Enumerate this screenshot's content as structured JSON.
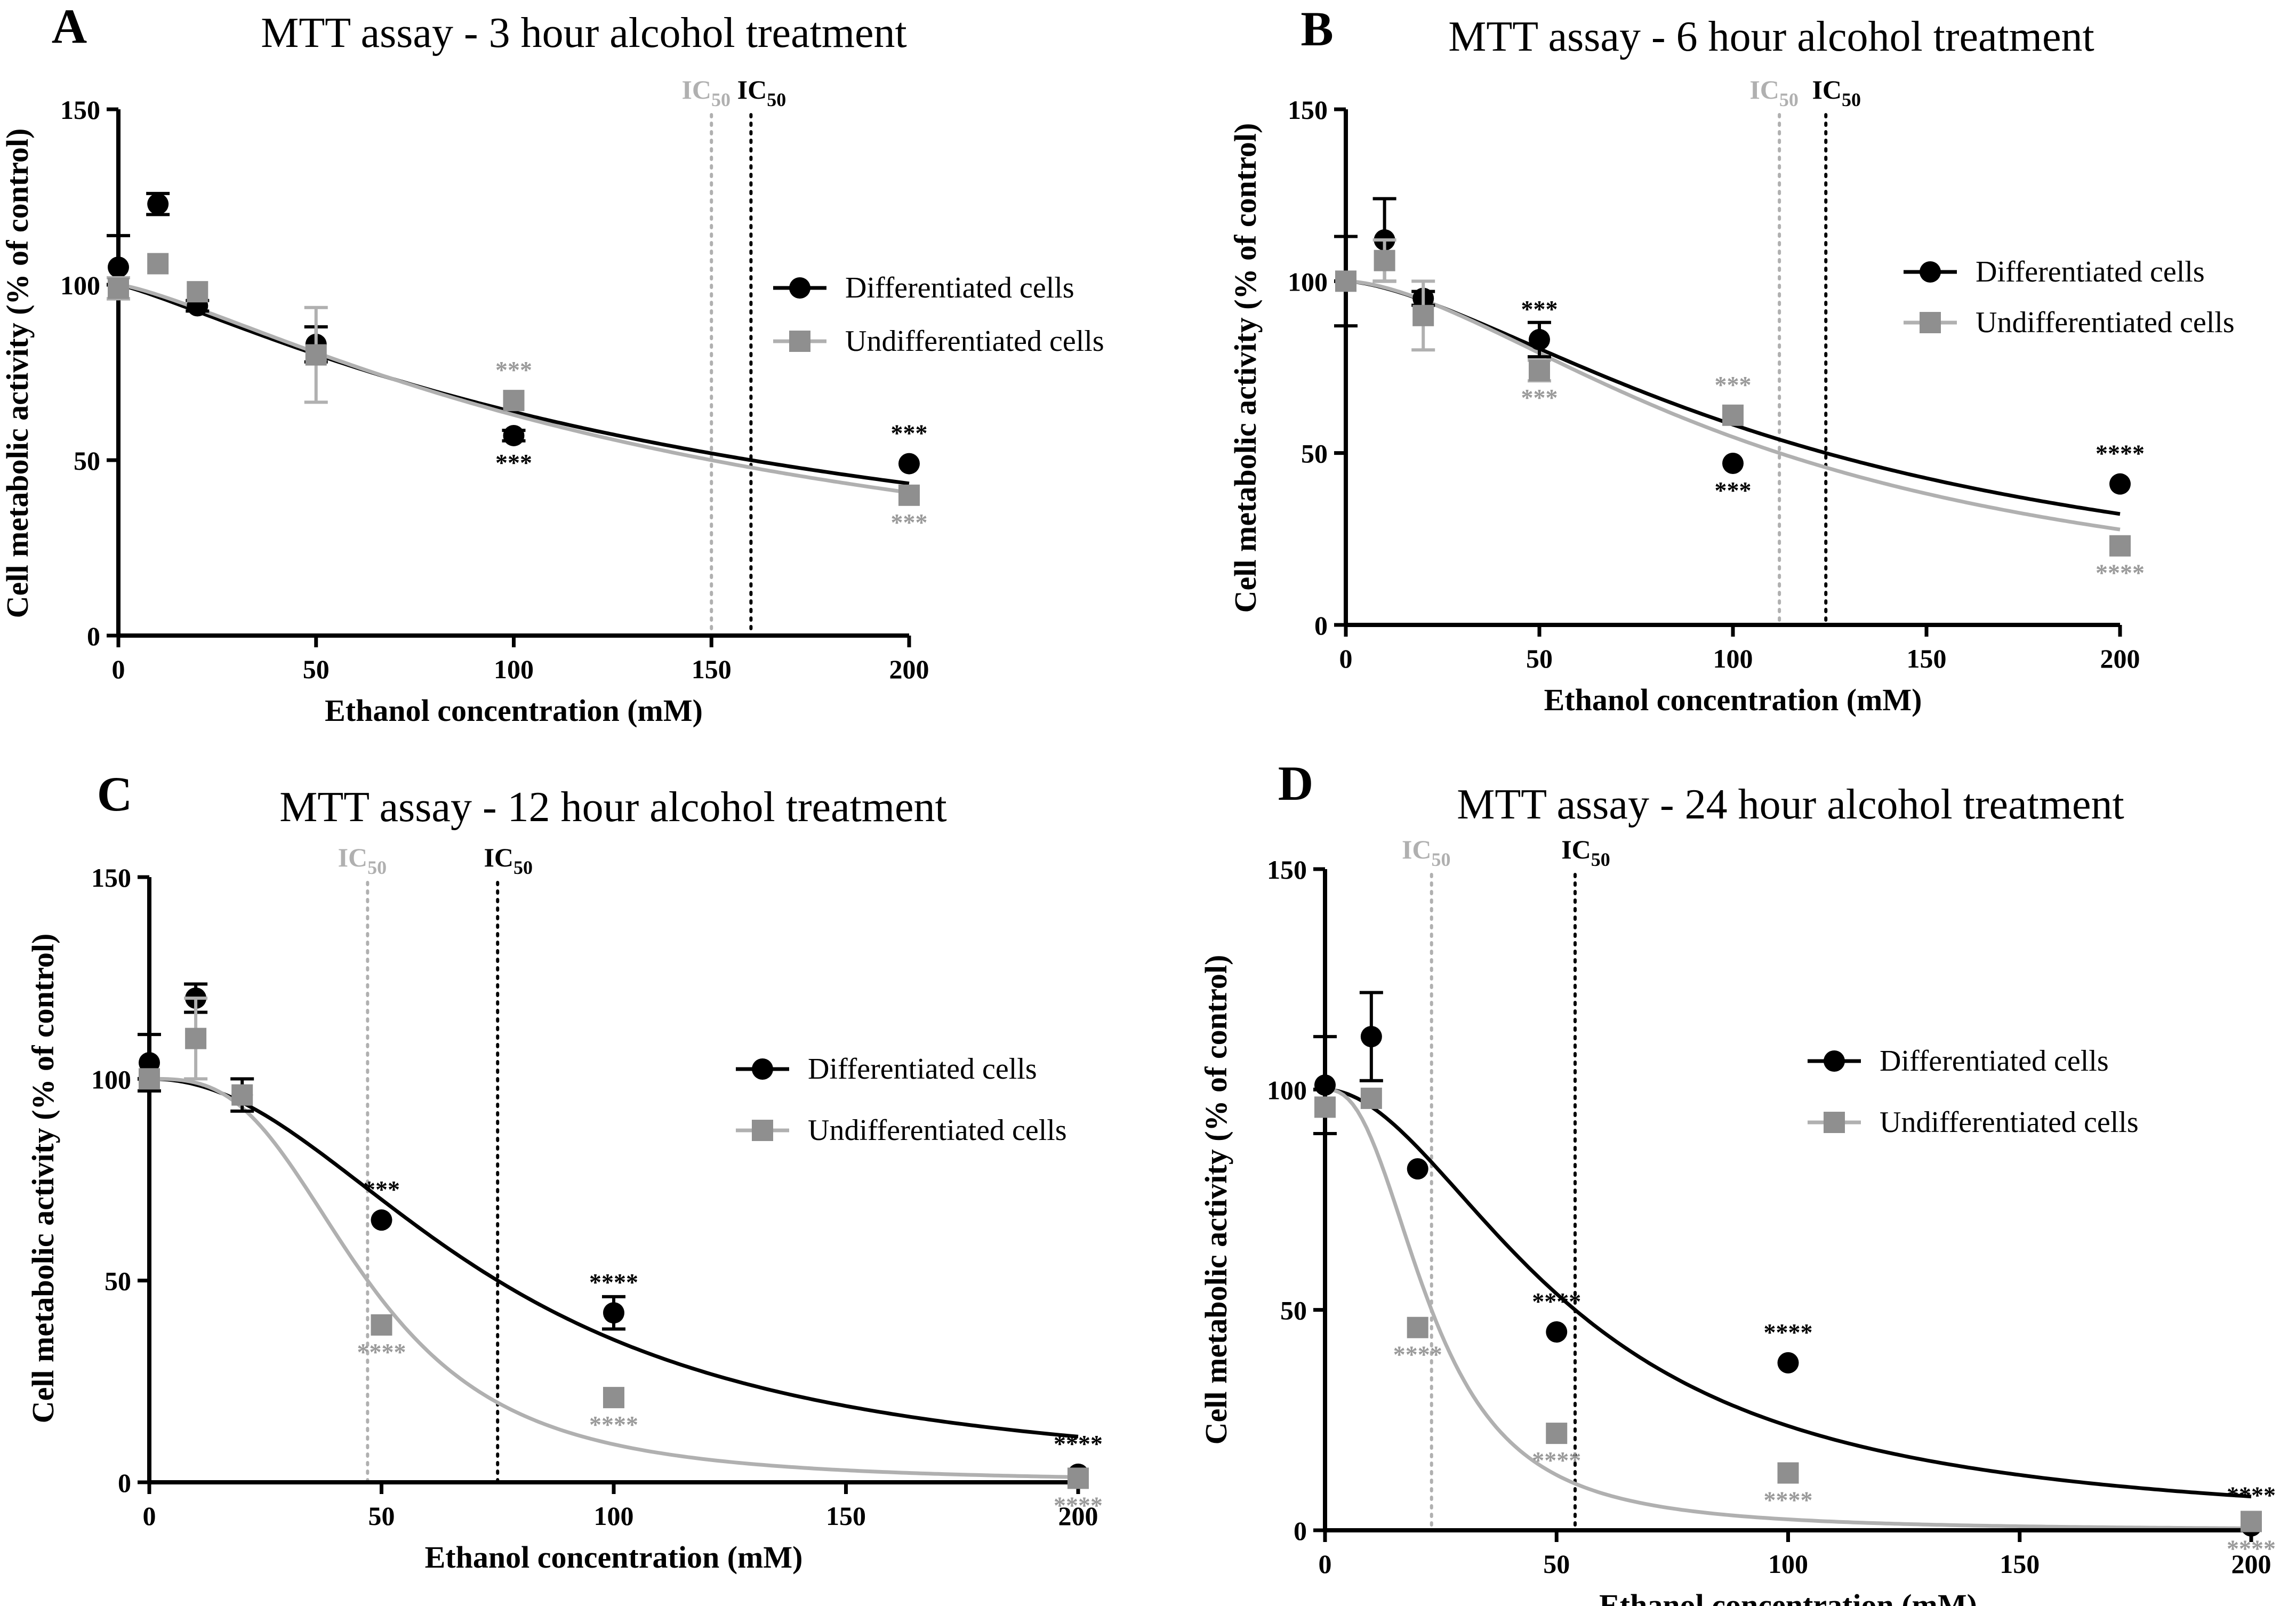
{
  "colors": {
    "differentiated": "#000000",
    "undifferentiated_marker": "#8f8f8f",
    "undifferentiated_curve": "#b0b0b0",
    "ic50_undiff": "#b0b0b0",
    "ic50_diff": "#000000",
    "star_undiff": "#9a9a9a"
  },
  "chart_data": [
    {
      "panel": "A",
      "type": "scatter",
      "title": "MTT assay - 3 hour alcohol treatment",
      "xlabel": "Ethanol concentration (mM)",
      "ylabel": "Cell metabolic activity (% of control)",
      "xlim": [
        0,
        200
      ],
      "ylim": [
        0,
        150
      ],
      "xticks": [
        0,
        50,
        100,
        150,
        200
      ],
      "yticks": [
        0,
        50,
        100,
        150
      ],
      "legend_position": "right",
      "ic50_label": "IC",
      "ic50_sub": "50",
      "ic50": {
        "differentiated": 160,
        "undifferentiated": 150
      },
      "series": [
        {
          "name": "Differentiated cells",
          "points": [
            {
              "x": 0,
              "y": 105,
              "err": 9,
              "stars": ""
            },
            {
              "x": 10,
              "y": 123,
              "err": 3,
              "stars": ""
            },
            {
              "x": 20,
              "y": 94,
              "err": 1.5,
              "stars": ""
            },
            {
              "x": 50,
              "y": 83,
              "err": 5,
              "stars": ""
            },
            {
              "x": 100,
              "y": 57,
              "err": 1.5,
              "stars": "***"
            },
            {
              "x": 200,
              "y": 49,
              "err": 1,
              "stars": "***"
            }
          ],
          "fit": {
            "ic50": 160,
            "hill": 1.2
          }
        },
        {
          "name": "Undifferentiated cells",
          "points": [
            {
              "x": 0,
              "y": 99,
              "err": 3,
              "stars": ""
            },
            {
              "x": 10,
              "y": 106,
              "err": 1,
              "stars": ""
            },
            {
              "x": 20,
              "y": 98,
              "err": 1,
              "stars": ""
            },
            {
              "x": 50,
              "y": 80,
              "err": 13.5,
              "stars": ""
            },
            {
              "x": 100,
              "y": 67,
              "err": 1,
              "stars": "***"
            },
            {
              "x": 200,
              "y": 40,
              "err": 1,
              "stars": "***"
            }
          ],
          "fit": {
            "ic50": 150,
            "hill": 1.3
          }
        }
      ]
    },
    {
      "panel": "B",
      "type": "scatter",
      "title": "MTT assay - 6 hour alcohol treatment",
      "xlabel": "Ethanol concentration (mM)",
      "ylabel": "Cell metabolic activity (% of control)",
      "xlim": [
        0,
        200
      ],
      "ylim": [
        0,
        150
      ],
      "xticks": [
        0,
        50,
        100,
        150,
        200
      ],
      "yticks": [
        0,
        50,
        100,
        150
      ],
      "legend_position": "right",
      "ic50_label": "IC",
      "ic50_sub": "50",
      "ic50": {
        "differentiated": 124,
        "undifferentiated": 112
      },
      "series": [
        {
          "name": "Differentiated cells",
          "points": [
            {
              "x": 0,
              "y": 100,
              "err": 13,
              "stars": ""
            },
            {
              "x": 10,
              "y": 112,
              "err": 12,
              "stars": ""
            },
            {
              "x": 20,
              "y": 95,
              "err": 2,
              "stars": ""
            },
            {
              "x": 50,
              "y": 83,
              "err": 5,
              "stars": "***"
            },
            {
              "x": 100,
              "y": 47,
              "err": 1,
              "stars": "***"
            },
            {
              "x": 200,
              "y": 41,
              "err": 1,
              "stars": "****"
            }
          ],
          "fit": {
            "ic50": 124,
            "hill": 1.55
          }
        },
        {
          "name": "Undifferentiated cells",
          "points": [
            {
              "x": 0,
              "y": 100,
              "err": 1,
              "stars": ""
            },
            {
              "x": 10,
              "y": 106,
              "err": 6,
              "stars": ""
            },
            {
              "x": 20,
              "y": 90,
              "err": 10,
              "stars": ""
            },
            {
              "x": 50,
              "y": 74,
              "err": 3,
              "stars": "***"
            },
            {
              "x": 100,
              "y": 61,
              "err": 1,
              "stars": "***"
            },
            {
              "x": 200,
              "y": 23,
              "err": 1,
              "stars": "****"
            }
          ],
          "fit": {
            "ic50": 112,
            "hill": 1.65
          }
        }
      ]
    },
    {
      "panel": "C",
      "type": "scatter",
      "title": "MTT assay - 12 hour alcohol treatment",
      "xlabel": "Ethanol concentration (mM)",
      "ylabel": "Cell metabolic activity (% of control)",
      "xlim": [
        0,
        200
      ],
      "ylim": [
        0,
        150
      ],
      "xticks": [
        0,
        50,
        100,
        150,
        200
      ],
      "yticks": [
        0,
        50,
        100,
        150
      ],
      "legend_position": "right",
      "ic50_label": "IC",
      "ic50_sub": "50",
      "ic50": {
        "differentiated": 75,
        "undifferentiated": 47
      },
      "series": [
        {
          "name": "Differentiated cells",
          "points": [
            {
              "x": 0,
              "y": 104,
              "err": 7,
              "stars": ""
            },
            {
              "x": 10,
              "y": 120,
              "err": 3.5,
              "stars": ""
            },
            {
              "x": 20,
              "y": 96,
              "err": 4,
              "stars": ""
            },
            {
              "x": 50,
              "y": 65,
              "err": 1,
              "stars": "***"
            },
            {
              "x": 100,
              "y": 42,
              "err": 4,
              "stars": "****"
            },
            {
              "x": 200,
              "y": 2,
              "err": 1,
              "stars": "****"
            }
          ],
          "fit": {
            "ic50": 75,
            "hill": 2.1
          }
        },
        {
          "name": "Undifferentiated cells",
          "points": [
            {
              "x": 0,
              "y": 100,
              "err": 1,
              "stars": ""
            },
            {
              "x": 10,
              "y": 110,
              "err": 10,
              "stars": ""
            },
            {
              "x": 20,
              "y": 96,
              "err": 1,
              "stars": ""
            },
            {
              "x": 50,
              "y": 39,
              "err": 1,
              "stars": "****"
            },
            {
              "x": 100,
              "y": 21,
              "err": 1,
              "stars": "****"
            },
            {
              "x": 200,
              "y": 1,
              "err": 1,
              "stars": "****"
            }
          ],
          "fit": {
            "ic50": 47,
            "hill": 3.0
          }
        }
      ]
    },
    {
      "panel": "D",
      "type": "scatter",
      "title": "MTT assay - 24 hour alcohol treatment",
      "xlabel": "Ethanol concentration (mM)",
      "ylabel": "Cell metabolic activity (% of control)",
      "xlim": [
        0,
        200
      ],
      "ylim": [
        0,
        150
      ],
      "xticks": [
        0,
        50,
        100,
        150,
        200
      ],
      "yticks": [
        0,
        50,
        100,
        150
      ],
      "legend_position": "right",
      "ic50_label": "IC",
      "ic50_sub": "50",
      "ic50": {
        "differentiated": 54,
        "undifferentiated": 23
      },
      "series": [
        {
          "name": "Differentiated cells",
          "points": [
            {
              "x": 0,
              "y": 101,
              "err": 11,
              "stars": ""
            },
            {
              "x": 10,
              "y": 112,
              "err": 10,
              "stars": ""
            },
            {
              "x": 20,
              "y": 82,
              "err": 1,
              "stars": ""
            },
            {
              "x": 50,
              "y": 45,
              "err": 1,
              "stars": "****"
            },
            {
              "x": 100,
              "y": 38,
              "err": 1,
              "stars": "****"
            },
            {
              "x": 200,
              "y": 1,
              "err": 1,
              "stars": "****"
            }
          ],
          "fit": {
            "ic50": 54,
            "hill": 1.9
          }
        },
        {
          "name": "Undifferentiated cells",
          "points": [
            {
              "x": 0,
              "y": 96,
              "err": 1,
              "stars": ""
            },
            {
              "x": 10,
              "y": 98,
              "err": 1,
              "stars": ""
            },
            {
              "x": 20,
              "y": 46,
              "err": 1,
              "stars": "****"
            },
            {
              "x": 50,
              "y": 22,
              "err": 1,
              "stars": "****"
            },
            {
              "x": 100,
              "y": 13,
              "err": 1,
              "stars": "****"
            },
            {
              "x": 200,
              "y": 2,
              "err": 1,
              "stars": "****"
            }
          ],
          "fit": {
            "ic50": 23,
            "hill": 2.5
          }
        }
      ]
    }
  ]
}
